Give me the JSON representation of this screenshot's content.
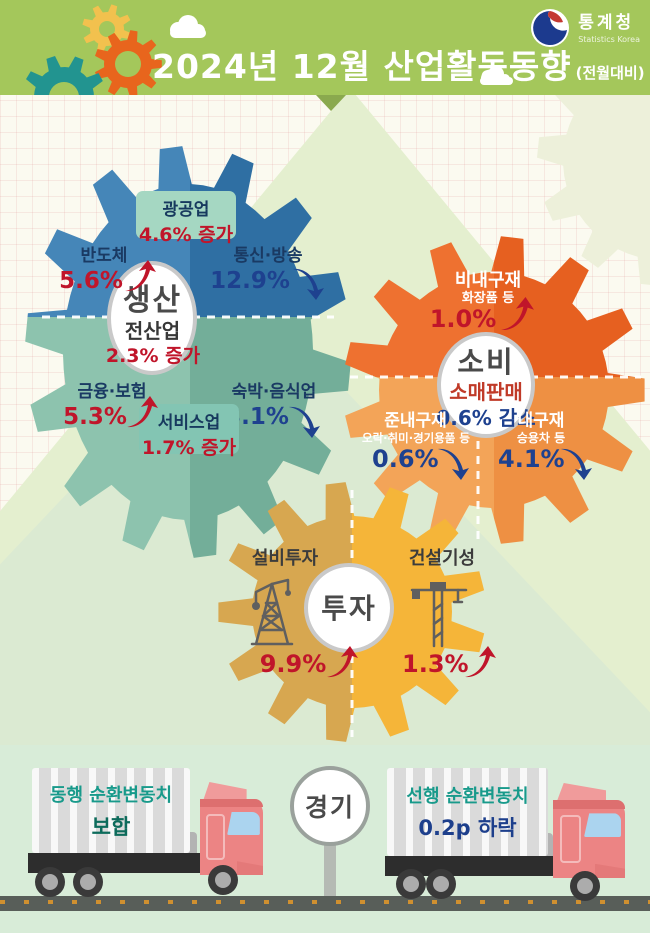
{
  "header": {
    "title": "2024년 12월 산업활동동향",
    "subtitle": "(전월대비)",
    "agency": "통계청",
    "agency_en": "Statistics Korea"
  },
  "production": {
    "top_box": {
      "label": "광공업",
      "value": "4.6% 증가"
    },
    "semiconductor": {
      "label": "반도체",
      "value": "5.6%"
    },
    "telecom": {
      "label": "통신·방송",
      "value": "12.9%"
    },
    "center": {
      "title": "생산",
      "sub": "전산업",
      "value": "2.3% 증가"
    },
    "finance": {
      "label": "금융·보험",
      "value": "5.3%"
    },
    "lodging": {
      "label": "숙박·음식업",
      "value": "3.1%"
    },
    "bottom_box": {
      "label": "서비스업",
      "value": "1.7% 증가"
    }
  },
  "consumption": {
    "nondurable": {
      "label": "비내구재",
      "sub": "화장품 등",
      "value": "1.0%"
    },
    "center": {
      "title": "소비",
      "sub": "소매판매",
      "value": "0.6% 감소"
    },
    "semidurable": {
      "label": "준내구재",
      "sub": "오락·취미·경기용품 등",
      "value": "0.6%"
    },
    "durable": {
      "label": "내구재",
      "sub": "승용차 등",
      "value": "4.1%"
    }
  },
  "investment": {
    "center": {
      "title": "투자"
    },
    "facility": {
      "label": "설비투자",
      "value": "9.9%"
    },
    "construction": {
      "label": "건설기성",
      "value": "1.3%"
    }
  },
  "economy": {
    "sign": "경기",
    "left_truck": {
      "line1": "동행 순환변동치",
      "line2": "보합"
    },
    "right_truck": {
      "line1": "선행 순환변동치",
      "line2": "0.2p 하락"
    }
  },
  "icons": {
    "up_arrow": "curved-up-arrow",
    "down_arrow": "curved-down-arrow",
    "facility_icon": "power-derrick",
    "construction_icon": "tower-crane",
    "logo": "taegeuk-emblem",
    "cloud": "cloud"
  },
  "colors": {
    "header_green": "#a4c75b",
    "red": "#c0152a",
    "navy": "#1e418f",
    "blue_tl": "#4586b8",
    "blue_tr": "#2f6fa3",
    "blue_bl": "#8dc3ae",
    "blue_br": "#73ae99",
    "orange_tl": "#ee7130",
    "orange_tr": "#e66020",
    "orange_bl": "#f3a458",
    "orange_br": "#ee9043",
    "yellow_l": "#d7a750",
    "yellow_r": "#f5b539",
    "mint_box": "#a5d7c2",
    "teal_box": "#83c5b3",
    "ghost": "#edf0da",
    "mountain": "#e4efcf",
    "mountain2": "#dbead2",
    "band": "#d8ecd8",
    "road": "#585e59",
    "hg_yellow": "#f2c14e",
    "hg_orange": "#e8651d",
    "hg_teal": "#229490",
    "cab_pink": "#ec8484",
    "container_gray": "#dadada",
    "teal_text": "#189a8b",
    "flat_text": "#0d6b5b"
  }
}
